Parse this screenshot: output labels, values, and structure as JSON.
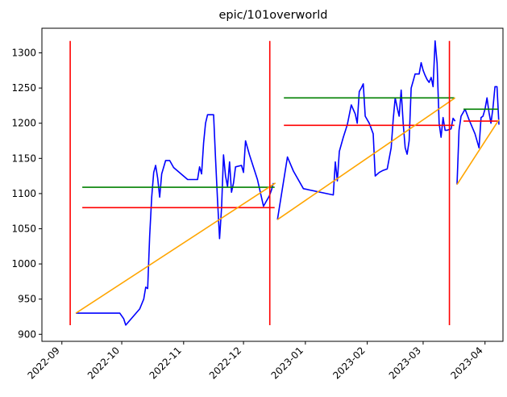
{
  "chart_data": {
    "type": "line",
    "title": "epic/101overworld",
    "xlabel": "",
    "ylabel": "",
    "x_axis_type": "date",
    "xlim": [
      "2022-08-22",
      "2023-04-10"
    ],
    "ylim": [
      890,
      1335
    ],
    "grid": false,
    "legend": "none",
    "x_ticks": [
      "2022-09",
      "2022-10",
      "2022-11",
      "2022-12",
      "2023-01",
      "2023-02",
      "2023-03",
      "2023-04"
    ],
    "y_ticks": [
      900,
      950,
      1000,
      1050,
      1100,
      1150,
      1200,
      1250,
      1300
    ],
    "colors": {
      "price": "#0000ff",
      "mean": "#ff0000",
      "level": "#008000",
      "trend": "#ffa500",
      "divider": "#ff0000"
    },
    "series": [
      {
        "kind": "price-line",
        "color": "#0000ff",
        "points": [
          [
            "2022-09-08",
            930
          ],
          [
            "2022-09-15",
            930
          ],
          [
            "2022-09-30",
            930
          ],
          [
            "2022-10-02",
            922
          ],
          [
            "2022-10-03",
            913
          ],
          [
            "2022-10-10",
            936
          ],
          [
            "2022-10-12",
            950
          ],
          [
            "2022-10-13",
            967
          ],
          [
            "2022-10-14",
            965
          ],
          [
            "2022-10-15",
            1040
          ],
          [
            "2022-10-16",
            1095
          ],
          [
            "2022-10-17",
            1130
          ],
          [
            "2022-10-18",
            1140
          ],
          [
            "2022-10-19",
            1122
          ],
          [
            "2022-10-20",
            1095
          ],
          [
            "2022-10-21",
            1128
          ],
          [
            "2022-10-23",
            1147
          ],
          [
            "2022-10-25",
            1147
          ],
          [
            "2022-10-27",
            1137
          ],
          [
            "2022-11-03",
            1120
          ],
          [
            "2022-11-08",
            1120
          ],
          [
            "2022-11-09",
            1138
          ],
          [
            "2022-11-10",
            1128
          ],
          [
            "2022-11-11",
            1172
          ],
          [
            "2022-11-12",
            1200
          ],
          [
            "2022-11-13",
            1212
          ],
          [
            "2022-11-16",
            1212
          ],
          [
            "2022-11-17",
            1150
          ],
          [
            "2022-11-18",
            1090
          ],
          [
            "2022-11-19",
            1036
          ],
          [
            "2022-11-20",
            1080
          ],
          [
            "2022-11-21",
            1155
          ],
          [
            "2022-11-22",
            1125
          ],
          [
            "2022-11-23",
            1110
          ],
          [
            "2022-11-24",
            1145
          ],
          [
            "2022-11-25",
            1102
          ],
          [
            "2022-11-26",
            1115
          ],
          [
            "2022-11-27",
            1138
          ],
          [
            "2022-11-30",
            1140
          ],
          [
            "2022-12-01",
            1130
          ],
          [
            "2022-12-02",
            1175
          ],
          [
            "2022-12-04",
            1155
          ],
          [
            "2022-12-08",
            1120
          ],
          [
            "2022-12-11",
            1082
          ],
          [
            "2022-12-14",
            1097
          ],
          [
            "2022-12-15",
            1105
          ],
          [
            "2022-12-16",
            1115
          ],
          [
            "2022-12-18",
            1063
          ],
          [
            "2022-12-23",
            1152
          ],
          [
            "2022-12-26",
            1132
          ],
          [
            "2022-12-31",
            1107
          ],
          [
            "2023-01-15",
            1098
          ],
          [
            "2023-01-16",
            1145
          ],
          [
            "2023-01-17",
            1118
          ],
          [
            "2023-01-18",
            1160
          ],
          [
            "2023-01-20",
            1180
          ],
          [
            "2023-01-22",
            1198
          ],
          [
            "2023-01-24",
            1226
          ],
          [
            "2023-01-26",
            1213
          ],
          [
            "2023-01-27",
            1200
          ],
          [
            "2023-01-28",
            1245
          ],
          [
            "2023-01-29",
            1250
          ],
          [
            "2023-01-30",
            1256
          ],
          [
            "2023-01-31",
            1210
          ],
          [
            "2023-02-02",
            1200
          ],
          [
            "2023-02-04",
            1185
          ],
          [
            "2023-02-05",
            1125
          ],
          [
            "2023-02-07",
            1130
          ],
          [
            "2023-02-09",
            1133
          ],
          [
            "2023-02-11",
            1135
          ],
          [
            "2023-02-13",
            1165
          ],
          [
            "2023-02-14",
            1205
          ],
          [
            "2023-02-15",
            1236
          ],
          [
            "2023-02-16",
            1222
          ],
          [
            "2023-02-17",
            1210
          ],
          [
            "2023-02-18",
            1247
          ],
          [
            "2023-02-19",
            1200
          ],
          [
            "2023-02-20",
            1165
          ],
          [
            "2023-02-21",
            1156
          ],
          [
            "2023-02-22",
            1175
          ],
          [
            "2023-02-23",
            1250
          ],
          [
            "2023-02-24",
            1260
          ],
          [
            "2023-02-25",
            1270
          ],
          [
            "2023-02-27",
            1270
          ],
          [
            "2023-02-28",
            1286
          ],
          [
            "2023-03-01",
            1275
          ],
          [
            "2023-03-02",
            1268
          ],
          [
            "2023-03-03",
            1262
          ],
          [
            "2023-03-04",
            1258
          ],
          [
            "2023-03-05",
            1265
          ],
          [
            "2023-03-06",
            1252
          ],
          [
            "2023-03-07",
            1317
          ],
          [
            "2023-03-08",
            1285
          ],
          [
            "2023-03-09",
            1200
          ],
          [
            "2023-03-10",
            1180
          ],
          [
            "2023-03-11",
            1208
          ],
          [
            "2023-03-12",
            1190
          ],
          [
            "2023-03-13",
            1190
          ],
          [
            "2023-03-15",
            1192
          ],
          [
            "2023-03-16",
            1207
          ],
          [
            "2023-03-17",
            1203
          ],
          [
            "2023-03-18",
            1113
          ],
          [
            "2023-03-19",
            1190
          ],
          [
            "2023-03-20",
            1210
          ],
          [
            "2023-03-22",
            1220
          ],
          [
            "2023-03-24",
            1205
          ],
          [
            "2023-03-27",
            1185
          ],
          [
            "2023-03-29",
            1165
          ],
          [
            "2023-03-30",
            1208
          ],
          [
            "2023-03-31",
            1210
          ],
          [
            "2023-04-01",
            1220
          ],
          [
            "2023-04-02",
            1236
          ],
          [
            "2023-04-03",
            1215
          ],
          [
            "2023-04-04",
            1200
          ],
          [
            "2023-04-05",
            1222
          ],
          [
            "2023-04-06",
            1252
          ],
          [
            "2023-04-07",
            1252
          ],
          [
            "2023-04-08",
            1198
          ]
        ]
      },
      {
        "kind": "segment-levels",
        "segments": [
          {
            "start": "2022-09-08",
            "end": "2022-12-17",
            "mean": 1080,
            "level": 1109,
            "trend_start": 930,
            "trend_end": 1115
          },
          {
            "start": "2022-12-18",
            "end": "2023-03-17",
            "mean": 1197,
            "level": 1236,
            "trend_start": 1063,
            "trend_end": 1236
          },
          {
            "start": "2023-03-18",
            "end": "2023-04-08",
            "mean": 1203,
            "level": 1220,
            "trend_start": 1113,
            "trend_end": 1205
          }
        ]
      },
      {
        "kind": "vertical-dividers",
        "color": "#ff0000",
        "dates": [
          "2022-09-08",
          "2022-12-17",
          "2023-03-17"
        ],
        "ymin": 913,
        "ymax": 1317
      }
    ]
  }
}
